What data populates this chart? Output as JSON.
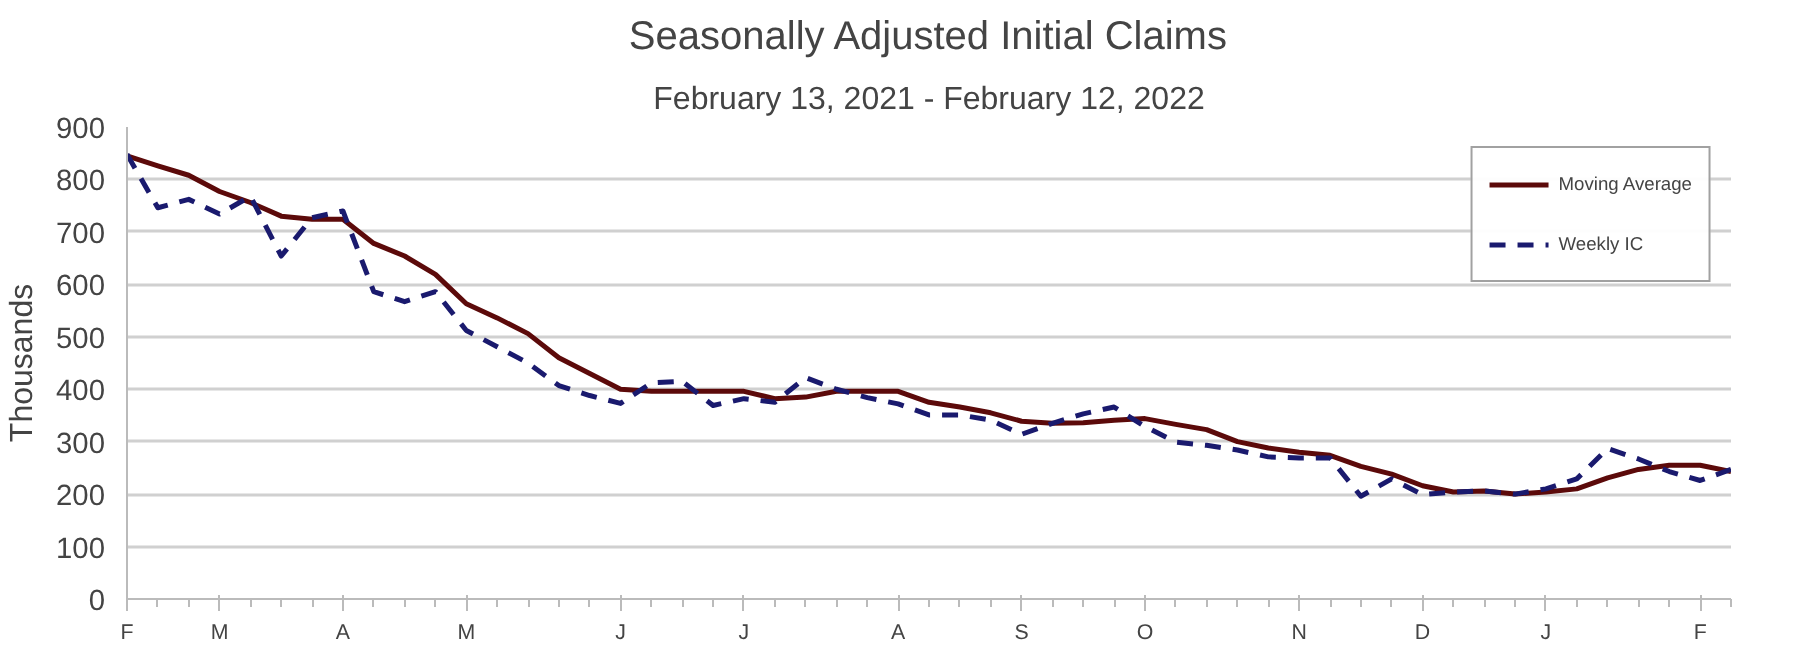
{
  "chart_data": {
    "type": "line",
    "title": "Seasonally Adjusted Initial Claims",
    "subtitle": "February 13, 2021 - February 12, 2022",
    "ylabel": "Thousands",
    "categories": [
      "F",
      null,
      null,
      "M",
      null,
      null,
      null,
      "A",
      null,
      null,
      null,
      "M",
      null,
      null,
      null,
      null,
      "J",
      null,
      null,
      null,
      "J",
      null,
      null,
      null,
      null,
      "A",
      null,
      null,
      null,
      "S",
      null,
      null,
      null,
      "O",
      null,
      null,
      null,
      null,
      "N",
      null,
      null,
      null,
      "D",
      null,
      null,
      null,
      "J",
      null,
      null,
      null,
      null,
      "F",
      null
    ],
    "ylim": [
      0,
      900
    ],
    "yticks": [
      0,
      100,
      200,
      300,
      400,
      500,
      600,
      700,
      800,
      900
    ],
    "grid": "y",
    "legend": "top right",
    "marker": "none",
    "series": [
      {
        "name": "Moving Average",
        "color": "#5c0a0a",
        "line_style": "solid",
        "values": [
          845,
          826,
          808,
          777,
          756,
          730,
          724,
          724,
          678,
          654,
          619,
          563,
          536,
          506,
          460,
          430,
          400,
          396,
          396,
          396,
          396,
          382,
          385,
          396,
          396,
          396,
          375,
          366,
          355,
          339,
          335,
          336,
          341,
          344,
          333,
          323,
          300,
          288,
          280,
          274,
          253,
          238,
          216,
          204,
          206,
          200,
          204,
          210,
          231,
          247,
          255,
          255,
          243
        ]
      },
      {
        "name": "Weekly IC",
        "color": "#1a1a6e",
        "line_style": "dashed",
        "values": [
          848,
          746,
          762,
          734,
          768,
          654,
          727,
          740,
          586,
          567,
          586,
          512,
          481,
          450,
          407,
          388,
          373,
          412,
          415,
          369,
          382,
          375,
          422,
          400,
          384,
          372,
          351,
          351,
          341,
          314,
          335,
          353,
          366,
          329,
          299,
          293,
          284,
          271,
          269,
          269,
          196,
          229,
          199,
          204,
          206,
          200,
          210,
          229,
          287,
          267,
          243,
          226,
          247
        ]
      }
    ]
  }
}
